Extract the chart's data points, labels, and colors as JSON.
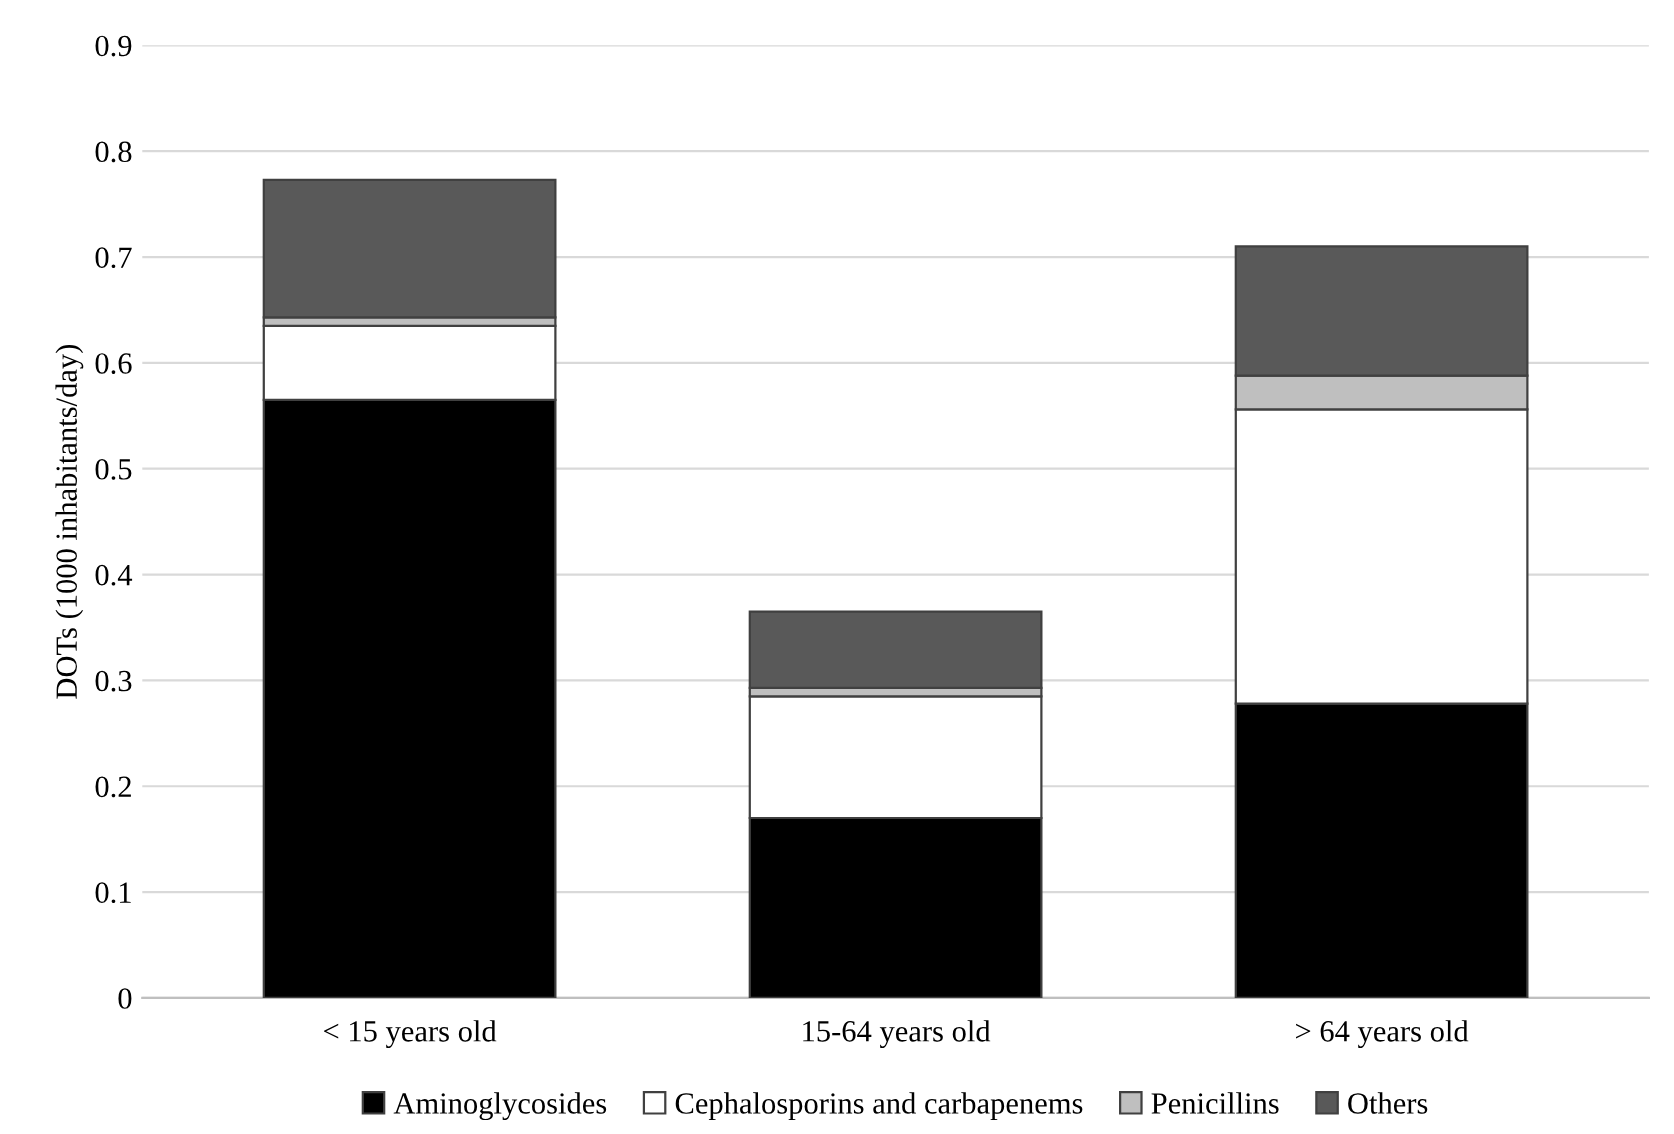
{
  "chart_data": {
    "type": "bar",
    "stacked": true,
    "ylabel": "DOTs (1000 inhabitants/day)",
    "categories": [
      "< 15 years old",
      "15-64 years old",
      "> 64 years old"
    ],
    "series": [
      {
        "name": "Aminoglycosides",
        "color": "#000000",
        "values": [
          0.565,
          0.17,
          0.278
        ]
      },
      {
        "name": "Cephalosporins and carbapenems",
        "color": "#ffffff",
        "values": [
          0.07,
          0.115,
          0.278
        ]
      },
      {
        "name": "Penicillins",
        "color": "#bfbfbf",
        "values": [
          0.008,
          0.008,
          0.032
        ]
      },
      {
        "name": "Others",
        "color": "#595959",
        "values": [
          0.13,
          0.072,
          0.122
        ]
      }
    ],
    "ylim": [
      0,
      0.9
    ],
    "yticks": [
      0,
      0.1,
      0.2,
      0.3,
      0.4,
      0.5,
      0.6,
      0.7,
      0.8,
      0.9
    ],
    "grid": "y",
    "legend": "bottom"
  }
}
